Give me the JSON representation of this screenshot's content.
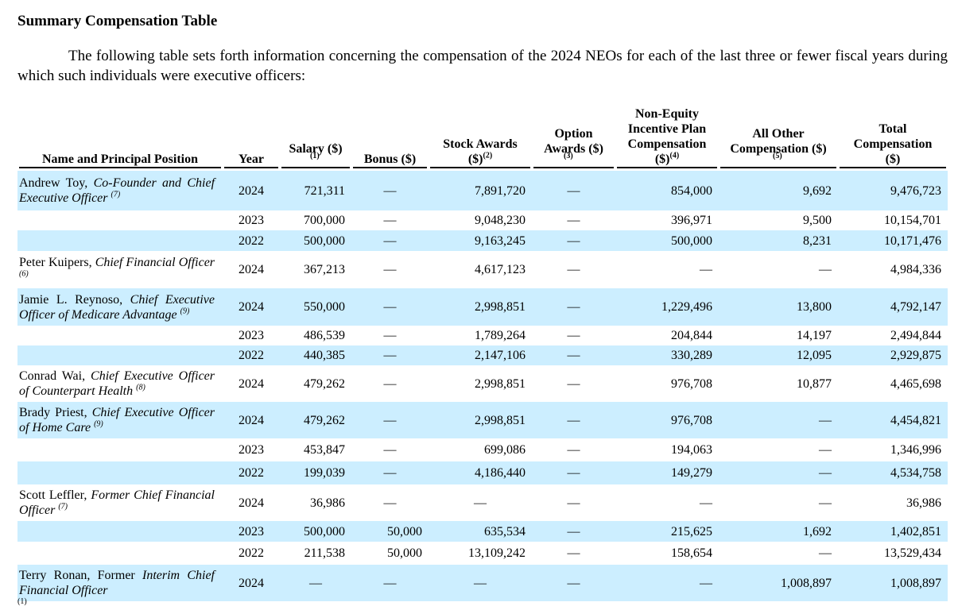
{
  "title": "Summary Compensation Table",
  "intro": "The following table sets forth information concerning the compensation of the 2024 NEOs for each of the last three or fewer fiscal years during which such individuals were executive officers:",
  "headers": {
    "name": "Name and Principal Position",
    "year": "Year",
    "salary": "Salary ($)",
    "salary_fn": "(1)",
    "bonus": "Bonus ($)",
    "stock_l1": "Stock Awards",
    "stock_l2": "($)",
    "stock_fn": "(2)",
    "option_l1": "Option",
    "option_l2": "Awards ($)",
    "option_fn": "(3)",
    "neip_l1": "Non-Equity",
    "neip_l2": "Incentive Plan",
    "neip_l3": "Compensation",
    "neip_l4": "($)",
    "neip_fn": "(4)",
    "other_l1": "All Other",
    "other_l2": "Compensation ($)",
    "other_fn": "(5)",
    "total_l1": "Total",
    "total_l2": "Compensation",
    "total_l3": "($)"
  },
  "rows": [
    {
      "name": "Andrew Toy,",
      "role": "Co-Founder and Chief Executive Officer",
      "fn": "(7)",
      "year": "2024",
      "salary": "721,311",
      "bonus": "—",
      "stock": "7,891,720",
      "option": "—",
      "neip": "854,000",
      "other": "9,692",
      "total": "9,476,723"
    },
    {
      "name": "",
      "role": "",
      "fn": "",
      "year": "2023",
      "salary": "700,000",
      "bonus": "—",
      "stock": "9,048,230",
      "option": "—",
      "neip": "396,971",
      "other": "9,500",
      "total": "10,154,701"
    },
    {
      "name": "",
      "role": "",
      "fn": "",
      "year": "2022",
      "salary": "500,000",
      "bonus": "—",
      "stock": "9,163,245",
      "option": "—",
      "neip": "500,000",
      "other": "8,231",
      "total": "10,171,476"
    },
    {
      "name": "Peter Kuipers,",
      "role": "Chief Financial Officer",
      "fn": "(6)",
      "year": "2024",
      "salary": "367,213",
      "bonus": "—",
      "stock": "4,617,123",
      "option": "—",
      "neip": "—",
      "other": "—",
      "total": "4,984,336"
    },
    {
      "name": "Jamie L. Reynoso,",
      "role": "Chief Executive Officer of Medicare Advantage",
      "fn": "(9)",
      "year": "2024",
      "salary": "550,000",
      "bonus": "—",
      "stock": "2,998,851",
      "option": "—",
      "neip": "1,229,496",
      "other": "13,800",
      "total": "4,792,147"
    },
    {
      "name": "",
      "role": "",
      "fn": "",
      "year": "2023",
      "salary": "486,539",
      "bonus": "—",
      "stock": "1,789,264",
      "option": "—",
      "neip": "204,844",
      "other": "14,197",
      "total": "2,494,844"
    },
    {
      "name": "",
      "role": "",
      "fn": "",
      "year": "2022",
      "salary": "440,385",
      "bonus": "—",
      "stock": "2,147,106",
      "option": "—",
      "neip": "330,289",
      "other": "12,095",
      "total": "2,929,875"
    },
    {
      "name": "Conrad Wai,",
      "role": "Chief Executive Officer of Counterpart Health",
      "fn": "(8)",
      "year": "2024",
      "salary": "479,262",
      "bonus": "—",
      "stock": "2,998,851",
      "option": "—",
      "neip": "976,708",
      "other": "10,877",
      "total": "4,465,698"
    },
    {
      "name": "Brady Priest,",
      "role": "Chief Executive Officer of Home Care",
      "fn": "(9)",
      "year": "2024",
      "salary": "479,262",
      "bonus": "—",
      "stock": "2,998,851",
      "option": "—",
      "neip": "976,708",
      "other": "—",
      "total": "4,454,821"
    },
    {
      "name": "",
      "role": "",
      "fn": "",
      "year": "2023",
      "salary": "453,847",
      "bonus": "—",
      "stock": "699,086",
      "option": "—",
      "neip": "194,063",
      "other": "—",
      "total": "1,346,996"
    },
    {
      "name": "",
      "role": "",
      "fn": "",
      "year": "2022",
      "salary": "199,039",
      "bonus": "—",
      "stock": "4,186,440",
      "option": "—",
      "neip": "149,279",
      "other": "—",
      "total": "4,534,758"
    },
    {
      "name": "Scott Leffler,",
      "role": "Former Chief Financial Officer",
      "fn": "(7)",
      "year": "2024",
      "salary": "36,986",
      "bonus": "—",
      "stock": "—",
      "option": "—",
      "neip": "—",
      "other": "—",
      "total": "36,986"
    },
    {
      "name": "",
      "role": "",
      "fn": "",
      "year": "2023",
      "salary": "500,000",
      "bonus": "50,000",
      "stock": "635,534",
      "option": "—",
      "neip": "215,625",
      "other": "1,692",
      "total": "1,402,851"
    },
    {
      "name": "",
      "role": "",
      "fn": "",
      "year": "2022",
      "salary": "211,538",
      "bonus": "50,000",
      "stock": "13,109,242",
      "option": "—",
      "neip": "158,654",
      "other": "—",
      "total": "13,529,434"
    },
    {
      "name": "Terry Ronan, Former",
      "role": "Interim Chief Financial Officer",
      "fn": "",
      "year": "2024",
      "salary": "—",
      "bonus": "—",
      "stock": "—",
      "option": "—",
      "neip": "—",
      "other": "1,008,897",
      "total": "1,008,897"
    }
  ],
  "footnote_marker": "(1)",
  "colors": {
    "shade": "#cceeff"
  }
}
